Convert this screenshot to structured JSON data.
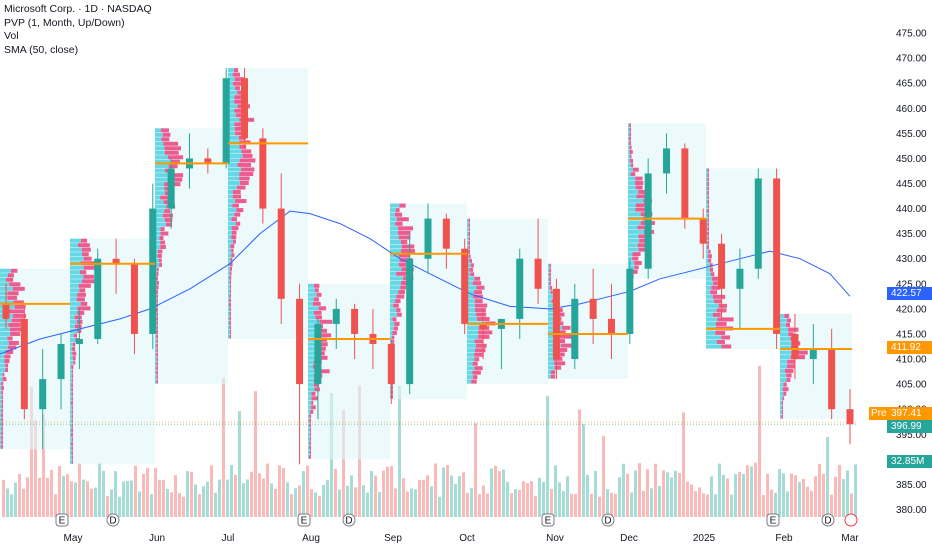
{
  "legend": {
    "title": "Microsoft Corp. · 1D · NASDAQ",
    "pvp": "PVP (1, Month, Up/Down)",
    "vol": "Vol",
    "sma": "SMA (50, close)"
  },
  "price_badges": {
    "sma": "422.57",
    "poc": "411.92",
    "pre_label": "Pre",
    "pre": "397.41",
    "last": "396.99",
    "volume": "32.85M"
  },
  "event_markers": [
    {
      "x": "Apr 25",
      "label": "E"
    },
    {
      "x": "May 15",
      "label": "D"
    },
    {
      "x": "Jul 30",
      "label": "E"
    },
    {
      "x": "Aug 15",
      "label": "D"
    },
    {
      "x": "Oct 30",
      "label": "E"
    },
    {
      "x": "Nov 20",
      "label": "D"
    },
    {
      "x": "Jan 29",
      "label": "E"
    },
    {
      "x": "Feb 19",
      "label": "D"
    }
  ],
  "colors": {
    "up": "#26a69a",
    "down": "#ef5350",
    "up_vol": "#8fd3cc",
    "down_vol": "#f7a9a7",
    "sma": "#2962ff",
    "poc": "#ff9800",
    "profile_up": "#4dd0e1",
    "profile_down": "#ec407a",
    "profile_bg": "#e0f7fa",
    "sma_badge": "#2962ff",
    "poc_badge": "#ff9800",
    "pre_badge": "#ff9800",
    "last_badge": "#26a69a"
  },
  "chart_data": {
    "type": "candlestick",
    "y_axis": {
      "ticks": [
        "475.00",
        "470.00",
        "465.00",
        "460.00",
        "455.00",
        "450.00",
        "445.00",
        "440.00",
        "435.00",
        "430.00",
        "425.00",
        "420.00",
        "415.00",
        "410.00",
        "405.00",
        "400.00",
        "395.00",
        "390.00",
        "385.00",
        "380.00"
      ],
      "range": [
        378.5,
        478
      ]
    },
    "x_axis": {
      "labels": [
        "May",
        "Jun",
        "Jul",
        "Aug",
        "Sep",
        "Oct",
        "Nov",
        "Dec",
        "2025",
        "Feb",
        "Mar"
      ]
    },
    "ohlc_approx": [
      {
        "date": "Apr 12",
        "o": 421,
        "h": 425,
        "l": 416,
        "c": 418
      },
      {
        "date": "Apr 19",
        "o": 418,
        "h": 420,
        "l": 398,
        "c": 400
      },
      {
        "date": "Apr 26",
        "o": 400,
        "h": 412,
        "l": 392,
        "c": 406
      },
      {
        "date": "May 03",
        "o": 406,
        "h": 415,
        "l": 400,
        "c": 413
      },
      {
        "date": "May 10",
        "o": 413,
        "h": 420,
        "l": 408,
        "c": 414
      },
      {
        "date": "May 17",
        "o": 414,
        "h": 432,
        "l": 413,
        "c": 430
      },
      {
        "date": "May 24",
        "o": 430,
        "h": 434,
        "l": 423,
        "c": 429
      },
      {
        "date": "May 31",
        "o": 429,
        "h": 430,
        "l": 411,
        "c": 415
      },
      {
        "date": "Jun 07",
        "o": 415,
        "h": 445,
        "l": 412,
        "c": 440
      },
      {
        "date": "Jun 14",
        "o": 440,
        "h": 450,
        "l": 436,
        "c": 448
      },
      {
        "date": "Jun 21",
        "o": 448,
        "h": 455,
        "l": 444,
        "c": 450
      },
      {
        "date": "Jun 28",
        "o": 450,
        "h": 452,
        "l": 447,
        "c": 449
      },
      {
        "date": "Jul 05",
        "o": 449,
        "h": 468,
        "l": 448,
        "c": 466
      },
      {
        "date": "Jul 12",
        "o": 466,
        "h": 468,
        "l": 452,
        "c": 454
      },
      {
        "date": "Jul 19",
        "o": 454,
        "h": 456,
        "l": 437,
        "c": 440
      },
      {
        "date": "Jul 26",
        "o": 440,
        "h": 447,
        "l": 417,
        "c": 422
      },
      {
        "date": "Aug 02",
        "o": 422,
        "h": 425,
        "l": 389,
        "c": 405
      },
      {
        "date": "Aug 09",
        "o": 405,
        "h": 418,
        "l": 398,
        "c": 417
      },
      {
        "date": "Aug 16",
        "o": 417,
        "h": 422,
        "l": 412,
        "c": 420
      },
      {
        "date": "Aug 23",
        "o": 420,
        "h": 421,
        "l": 410,
        "c": 415
      },
      {
        "date": "Aug 30",
        "o": 415,
        "h": 420,
        "l": 408,
        "c": 413
      },
      {
        "date": "Sep 06",
        "o": 413,
        "h": 414,
        "l": 401,
        "c": 405
      },
      {
        "date": "Sep 13",
        "o": 405,
        "h": 435,
        "l": 403,
        "c": 430
      },
      {
        "date": "Sep 20",
        "o": 430,
        "h": 441,
        "l": 427,
        "c": 438
      },
      {
        "date": "Sep 27",
        "o": 438,
        "h": 439,
        "l": 428,
        "c": 432
      },
      {
        "date": "Oct 04",
        "o": 432,
        "h": 434,
        "l": 415,
        "c": 417
      },
      {
        "date": "Oct 11",
        "o": 417,
        "h": 420,
        "l": 410,
        "c": 416
      },
      {
        "date": "Oct 18",
        "o": 416,
        "h": 418,
        "l": 408,
        "c": 418
      },
      {
        "date": "Oct 25",
        "o": 418,
        "h": 432,
        "l": 414,
        "c": 430
      },
      {
        "date": "Nov 01",
        "o": 430,
        "h": 438,
        "l": 421,
        "c": 424
      },
      {
        "date": "Nov 08",
        "o": 424,
        "h": 426,
        "l": 406,
        "c": 410
      },
      {
        "date": "Nov 15",
        "o": 410,
        "h": 425,
        "l": 408,
        "c": 422
      },
      {
        "date": "Nov 22",
        "o": 422,
        "h": 428,
        "l": 413,
        "c": 418
      },
      {
        "date": "Nov 29",
        "o": 418,
        "h": 425,
        "l": 410,
        "c": 415
      },
      {
        "date": "Dec 06",
        "o": 415,
        "h": 430,
        "l": 413,
        "c": 428
      },
      {
        "date": "Dec 13",
        "o": 428,
        "h": 450,
        "l": 426,
        "c": 447
      },
      {
        "date": "Dec 20",
        "o": 447,
        "h": 455,
        "l": 443,
        "c": 452
      },
      {
        "date": "Dec 27",
        "o": 452,
        "h": 453,
        "l": 436,
        "c": 438
      },
      {
        "date": "Jan 03",
        "o": 438,
        "h": 440,
        "l": 430,
        "c": 433
      },
      {
        "date": "Jan 10",
        "o": 433,
        "h": 435,
        "l": 418,
        "c": 424
      },
      {
        "date": "Jan 17",
        "o": 424,
        "h": 432,
        "l": 416,
        "c": 428
      },
      {
        "date": "Jan 24",
        "o": 428,
        "h": 448,
        "l": 426,
        "c": 446
      },
      {
        "date": "Jan 31",
        "o": 446,
        "h": 448,
        "l": 412,
        "c": 415
      },
      {
        "date": "Feb 07",
        "o": 415,
        "h": 419,
        "l": 406,
        "c": 410
      },
      {
        "date": "Feb 14",
        "o": 410,
        "h": 417,
        "l": 405,
        "c": 412
      },
      {
        "date": "Feb 21",
        "o": 412,
        "h": 416,
        "l": 398,
        "c": 400
      },
      {
        "date": "Feb 28",
        "o": 400,
        "h": 404,
        "l": 393,
        "c": 397
      }
    ]
  }
}
